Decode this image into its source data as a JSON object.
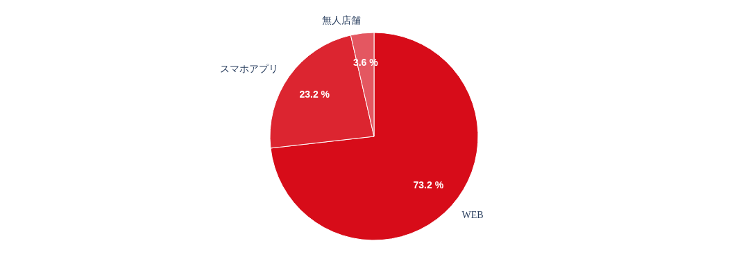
{
  "chart_data": {
    "type": "pie",
    "categories": [
      "WEB",
      "スマホアプリ",
      "無人店舗"
    ],
    "values": [
      73.2,
      23.2,
      3.6
    ],
    "colors": [
      "#d70c19",
      "#dc2530",
      "#e45761"
    ],
    "value_labels": [
      "73.2 %",
      "23.2 %",
      "3.6 %"
    ],
    "legend": false
  }
}
